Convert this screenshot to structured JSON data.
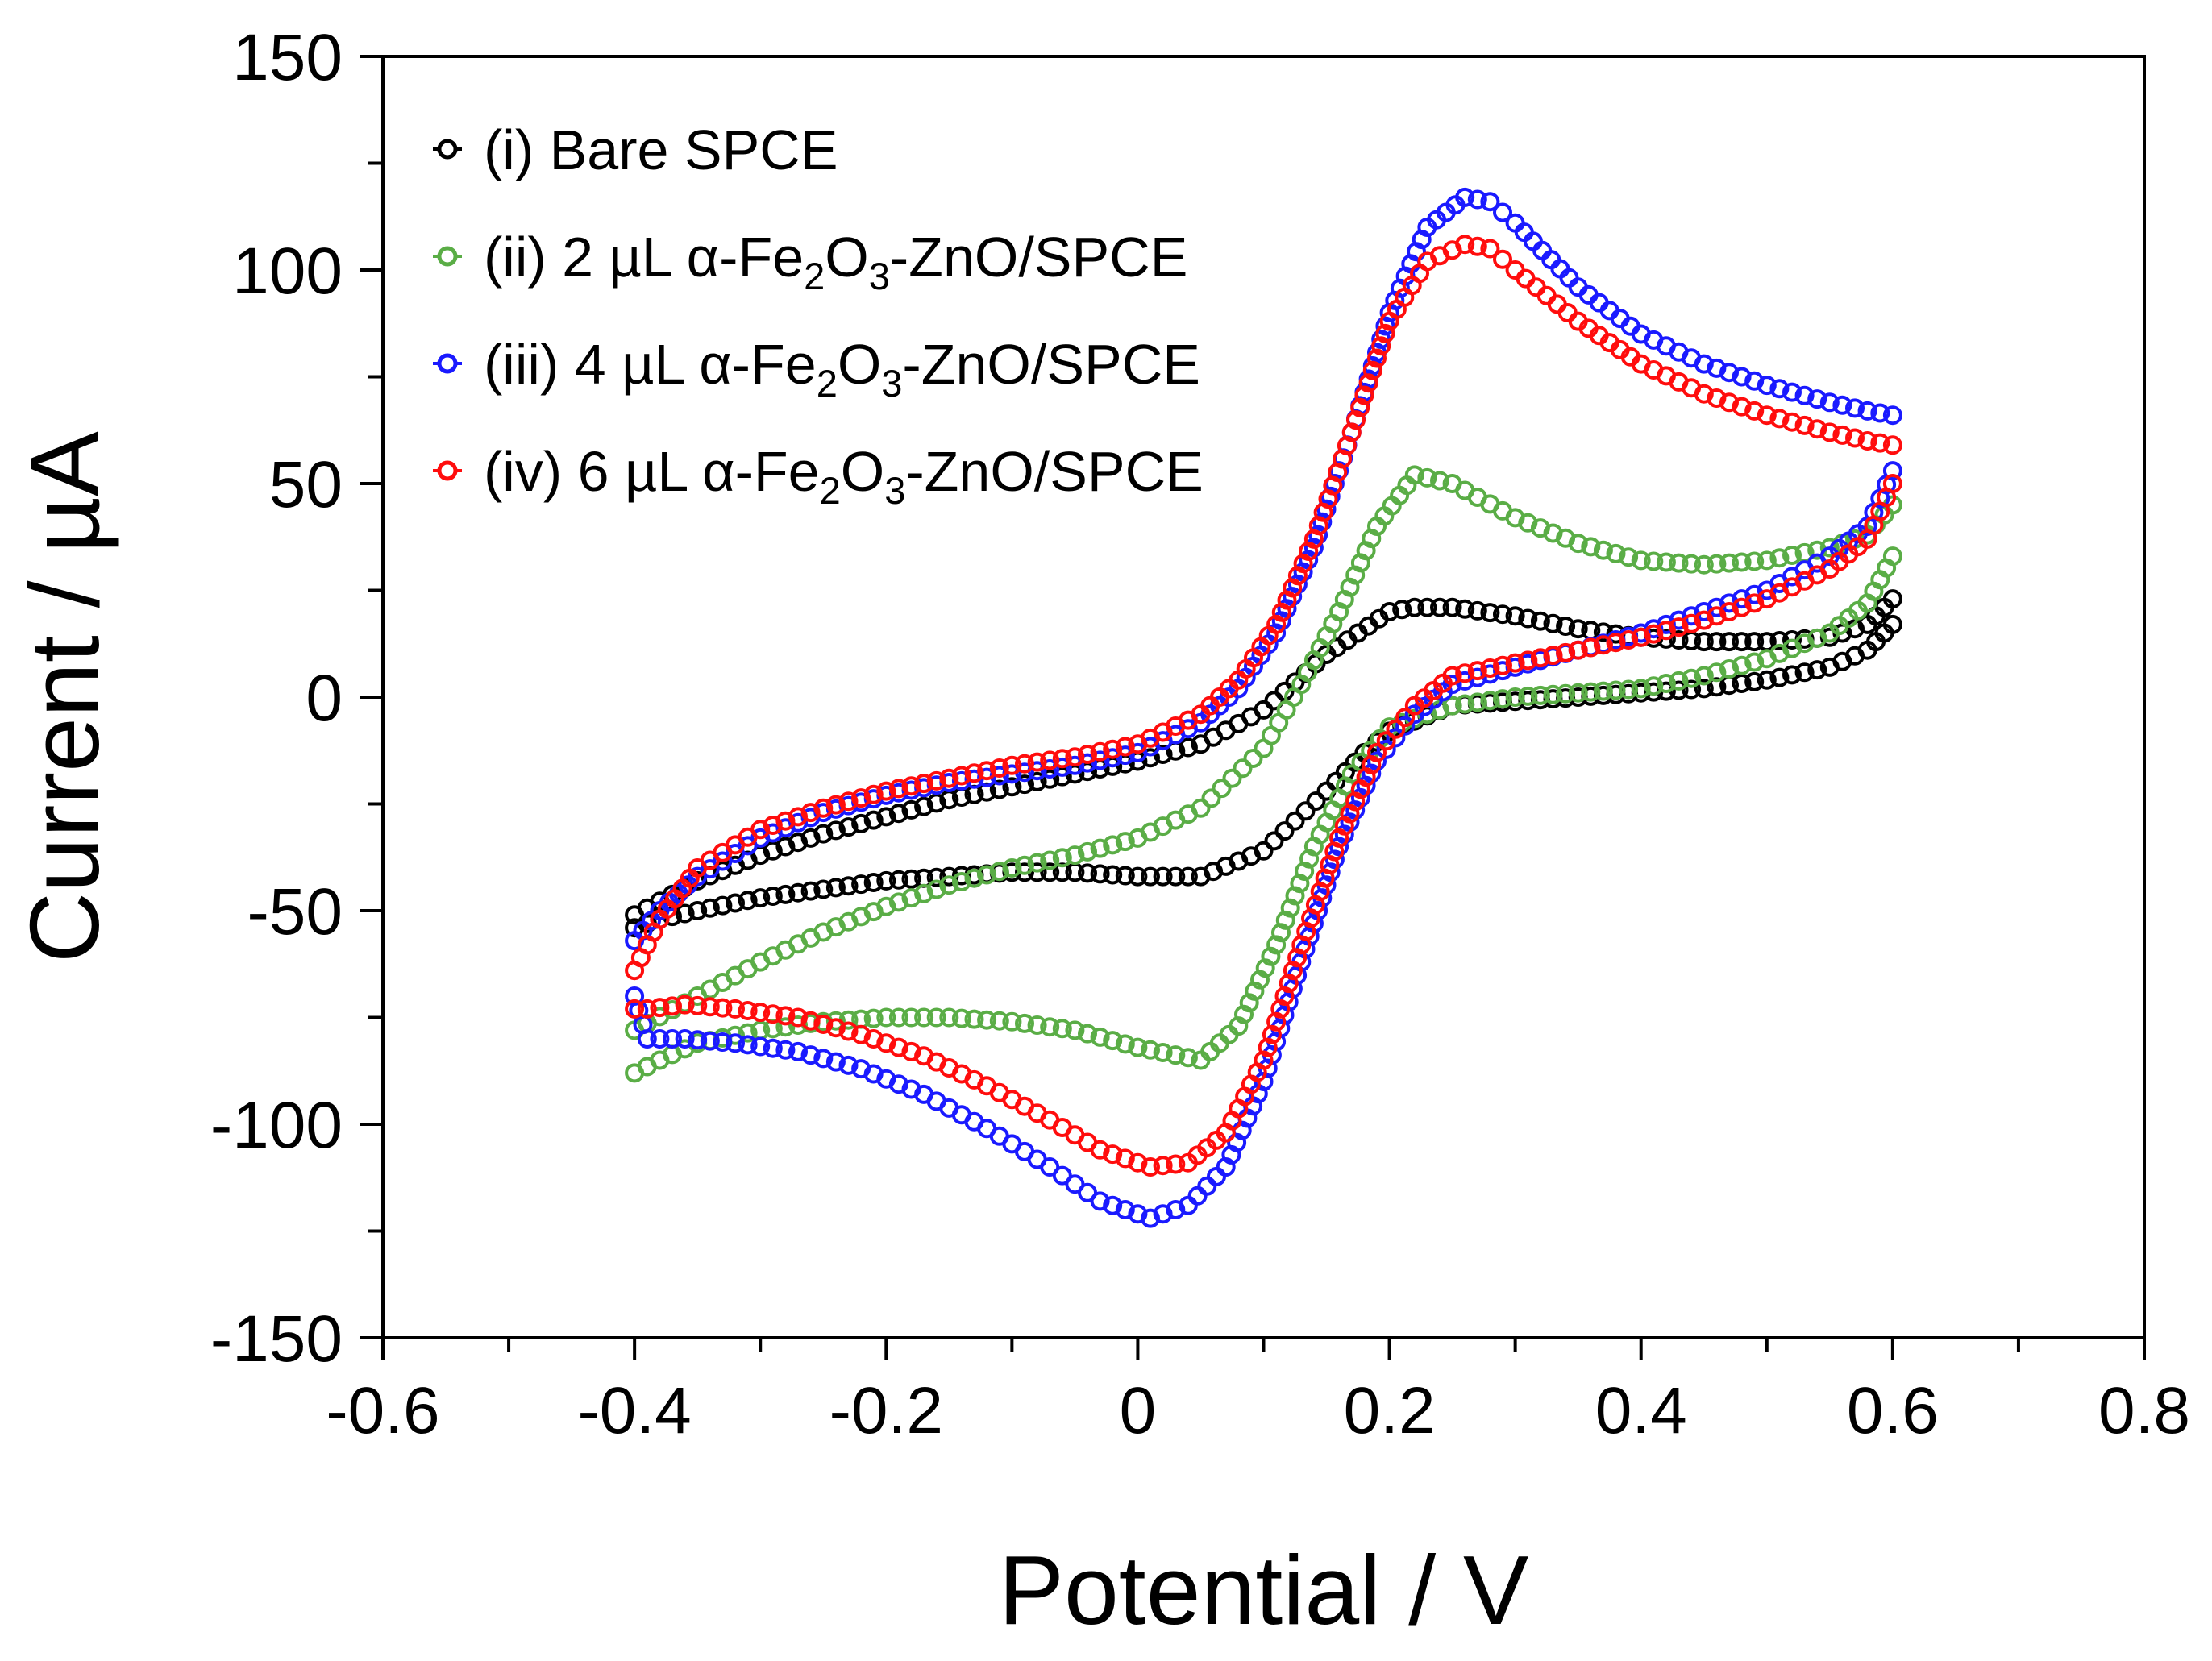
{
  "chart_data": {
    "type": "scatter",
    "style": "cyclic voltammogram, open circle markers",
    "xlabel": "Potential / V",
    "ylabel": "Current / µA",
    "xlim": [
      -0.6,
      0.8
    ],
    "ylim": [
      -150,
      150
    ],
    "xticks": [
      -0.6,
      -0.4,
      -0.2,
      0,
      0.2,
      0.4,
      0.6,
      0.8
    ],
    "xtick_labels": [
      "-0.6",
      "-0.4",
      "-0.2",
      "0",
      "0.2",
      "0.4",
      "0.6",
      "0.8"
    ],
    "yticks": [
      -150,
      -100,
      -50,
      0,
      50,
      100,
      150
    ],
    "ytick_labels": [
      "-150",
      "-100",
      "-50",
      "0",
      "50",
      "100",
      "150"
    ],
    "x_minor_step": 0.1,
    "y_minor_step": 25,
    "grid": false,
    "legend_position": "top-left",
    "series": [
      {
        "name": "(i) Bare SPCE",
        "legend": {
          "pre": "(i) Bare SPCE",
          "formula": []
        },
        "color": "#000000",
        "anodic": {
          "x": [
            -0.4,
            -0.35,
            -0.3,
            -0.25,
            -0.2,
            -0.15,
            -0.1,
            -0.05,
            0.0,
            0.05,
            0.1,
            0.15,
            0.2,
            0.22,
            0.25,
            0.3,
            0.35,
            0.4,
            0.45,
            0.5,
            0.55,
            0.58,
            0.6
          ],
          "y": [
            -51,
            -43,
            -37,
            -32,
            -28,
            -24,
            -21,
            -18,
            -15,
            -11,
            -3,
            10,
            20,
            21,
            21,
            19,
            16,
            14,
            13,
            13,
            14,
            17,
            23
          ]
        },
        "cathodic": {
          "x": [
            0.6,
            0.58,
            0.55,
            0.5,
            0.45,
            0.4,
            0.35,
            0.3,
            0.25,
            0.2,
            0.18,
            0.15,
            0.1,
            0.05,
            0.0,
            -0.05,
            -0.1,
            -0.15,
            -0.2,
            -0.25,
            -0.3,
            -0.35,
            -0.38,
            -0.4
          ],
          "y": [
            17,
            11,
            7,
            4,
            2,
            1,
            0,
            -1,
            -2,
            -8,
            -13,
            -22,
            -36,
            -42,
            -42,
            -41,
            -41,
            -42,
            -43,
            -45,
            -47,
            -50,
            -52,
            -54
          ]
        }
      },
      {
        "name": "(ii) 2 µL α-Fe2O3-ZnO/SPCE",
        "legend": {
          "pre": "(ii) 2 µL α-Fe",
          "formula": [
            {
              "t": "2",
              "sub": true
            },
            {
              "t": "O",
              "sub": false
            },
            {
              "t": "3",
              "sub": true
            },
            {
              "t": "-ZnO/SPCE",
              "sub": false
            }
          ]
        },
        "color": "#5aad46",
        "anodic": {
          "x": [
            -0.4,
            -0.35,
            -0.3,
            -0.25,
            -0.2,
            -0.15,
            -0.1,
            -0.05,
            0.0,
            0.05,
            0.1,
            0.13,
            0.16,
            0.19,
            0.22,
            0.25,
            0.3,
            0.35,
            0.4,
            0.45,
            0.5,
            0.55,
            0.58,
            0.6
          ],
          "y": [
            -78,
            -70,
            -62,
            -55,
            -49,
            -44,
            -40,
            -37,
            -33,
            -26,
            -12,
            3,
            20,
            40,
            52,
            50,
            42,
            36,
            32,
            31,
            32,
            35,
            38,
            45
          ]
        },
        "cathodic": {
          "x": [
            0.6,
            0.58,
            0.55,
            0.5,
            0.45,
            0.4,
            0.35,
            0.3,
            0.25,
            0.2,
            0.17,
            0.14,
            0.11,
            0.08,
            0.05,
            0.0,
            -0.05,
            -0.1,
            -0.15,
            -0.2,
            -0.25,
            -0.3,
            -0.35,
            -0.38,
            -0.4
          ],
          "y": [
            33,
            22,
            15,
            9,
            5,
            2,
            1,
            0,
            -2,
            -7,
            -18,
            -35,
            -58,
            -77,
            -85,
            -82,
            -78,
            -76,
            -75,
            -75,
            -76,
            -78,
            -81,
            -85,
            -88
          ]
        }
      },
      {
        "name": "(iii) 4 µL α-Fe2O3-ZnO/SPCE",
        "legend": {
          "pre": "(iii) 4 µL α-Fe",
          "formula": [
            {
              "t": "2",
              "sub": true
            },
            {
              "t": "O",
              "sub": false
            },
            {
              "t": "3",
              "sub": true
            },
            {
              "t": "-ZnO/SPCE",
              "sub": false
            }
          ]
        },
        "color": "#1a1aff",
        "anodic": {
          "x": [
            -0.4,
            -0.38,
            -0.35,
            -0.3,
            -0.25,
            -0.2,
            -0.15,
            -0.1,
            -0.05,
            0.0,
            0.05,
            0.08,
            0.11,
            0.14,
            0.17,
            0.2,
            0.23,
            0.26,
            0.28,
            0.3,
            0.35,
            0.4,
            0.45,
            0.5,
            0.55,
            0.58,
            0.6
          ],
          "y": [
            -57,
            -50,
            -42,
            -33,
            -27,
            -23,
            -20,
            -18,
            -16,
            -13,
            -6,
            2,
            15,
            35,
            62,
            90,
            110,
            117,
            116,
            111,
            96,
            85,
            78,
            73,
            69,
            67,
            66
          ]
        },
        "cathodic": {
          "x": [
            0.6,
            0.58,
            0.55,
            0.5,
            0.45,
            0.4,
            0.35,
            0.3,
            0.25,
            0.22,
            0.19,
            0.16,
            0.13,
            0.1,
            0.07,
            0.04,
            0.01,
            -0.03,
            -0.07,
            -0.12,
            -0.17,
            -0.22,
            -0.27,
            -0.32,
            -0.36,
            -0.39,
            -0.4
          ],
          "y": [
            53,
            40,
            33,
            25,
            20,
            15,
            11,
            7,
            3,
            -4,
            -15,
            -35,
            -62,
            -90,
            -110,
            -119,
            -122,
            -118,
            -110,
            -101,
            -93,
            -87,
            -83,
            -81,
            -80,
            -80,
            -70
          ]
        }
      },
      {
        "name": "(iv) 6 µL α-Fe2O3-ZnO/SPCE",
        "legend": {
          "pre": "(iv) 6 µL α-Fe",
          "formula": [
            {
              "t": "2",
              "sub": true
            },
            {
              "t": "O",
              "sub": false
            },
            {
              "t": "3",
              "sub": true
            },
            {
              "t": "-ZnO/SPCE",
              "sub": false
            }
          ]
        },
        "color": "#ff0d0d",
        "anodic": {
          "x": [
            -0.4,
            -0.38,
            -0.35,
            -0.3,
            -0.25,
            -0.2,
            -0.15,
            -0.1,
            -0.05,
            0.0,
            0.05,
            0.08,
            0.11,
            0.14,
            0.17,
            0.2,
            0.23,
            0.26,
            0.28,
            0.3,
            0.35,
            0.4,
            0.45,
            0.5,
            0.55,
            0.58,
            0.6
          ],
          "y": [
            -64,
            -52,
            -40,
            -31,
            -26,
            -22,
            -19,
            -16,
            -14,
            -11,
            -4,
            4,
            17,
            37,
            62,
            88,
            102,
            106,
            105,
            100,
            88,
            78,
            71,
            66,
            62,
            60,
            59
          ]
        },
        "cathodic": {
          "x": [
            0.6,
            0.58,
            0.55,
            0.5,
            0.45,
            0.4,
            0.35,
            0.3,
            0.25,
            0.22,
            0.19,
            0.16,
            0.13,
            0.1,
            0.07,
            0.04,
            0.01,
            -0.03,
            -0.07,
            -0.12,
            -0.17,
            -0.22,
            -0.27,
            -0.32,
            -0.36,
            -0.39,
            -0.4
          ],
          "y": [
            50,
            37,
            30,
            23,
            18,
            14,
            11,
            8,
            5,
            -2,
            -13,
            -33,
            -58,
            -85,
            -102,
            -109,
            -110,
            -106,
            -99,
            -91,
            -84,
            -79,
            -75,
            -73,
            -72,
            -73,
            -73
          ]
        }
      }
    ]
  }
}
